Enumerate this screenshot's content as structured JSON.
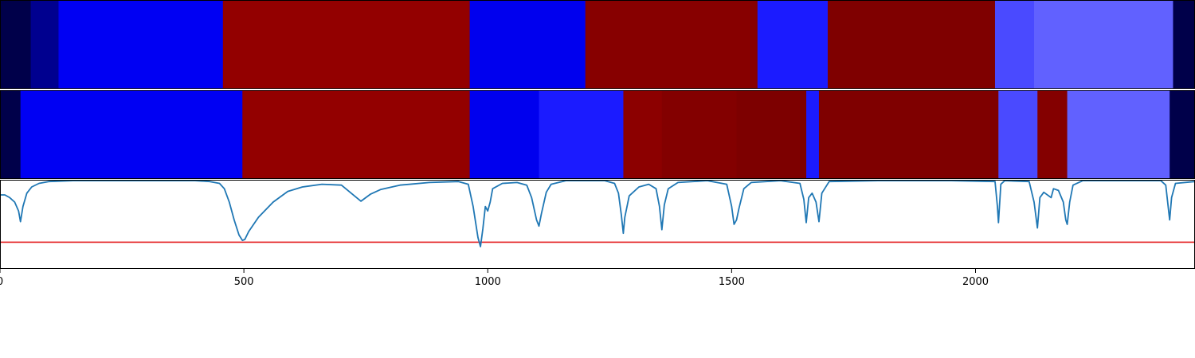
{
  "chart_data": {
    "type": "heatmap",
    "x_range": [
      0,
      2450
    ],
    "x_ticks": [
      0,
      500,
      1000,
      1500,
      2000
    ],
    "x_tick_labels": [
      "0",
      "500",
      "1000",
      "1500",
      "2000"
    ],
    "threshold_color": "#e41a1c",
    "line_color": "#1f77b4",
    "threshold_value": 0.7,
    "rows": [
      {
        "segments": [
          {
            "start": 0,
            "end": 63,
            "color": "#00004a"
          },
          {
            "start": 63,
            "end": 120,
            "color": "#00008f"
          },
          {
            "start": 120,
            "end": 457,
            "color": "#0000f3"
          },
          {
            "start": 457,
            "end": 963,
            "color": "#930000"
          },
          {
            "start": 963,
            "end": 1200,
            "color": "#0000ee"
          },
          {
            "start": 1200,
            "end": 1553,
            "color": "#870000"
          },
          {
            "start": 1553,
            "end": 1697,
            "color": "#1b1bff"
          },
          {
            "start": 1697,
            "end": 2040,
            "color": "#7f0000"
          },
          {
            "start": 2040,
            "end": 2120,
            "color": "#4a4aff"
          },
          {
            "start": 2120,
            "end": 2405,
            "color": "#6161ff"
          },
          {
            "start": 2405,
            "end": 2450,
            "color": "#00004a"
          }
        ]
      },
      {
        "segments": [
          {
            "start": 0,
            "end": 42,
            "color": "#00004a"
          },
          {
            "start": 42,
            "end": 497,
            "color": "#0000f3"
          },
          {
            "start": 497,
            "end": 963,
            "color": "#930000"
          },
          {
            "start": 963,
            "end": 1105,
            "color": "#0000ee"
          },
          {
            "start": 1105,
            "end": 1278,
            "color": "#1b1bff"
          },
          {
            "start": 1278,
            "end": 1357,
            "color": "#8c0000"
          },
          {
            "start": 1357,
            "end": 1510,
            "color": "#830000"
          },
          {
            "start": 1510,
            "end": 1653,
            "color": "#7d0000"
          },
          {
            "start": 1653,
            "end": 1679,
            "color": "#1b1bff"
          },
          {
            "start": 1679,
            "end": 2047,
            "color": "#7f0000"
          },
          {
            "start": 2047,
            "end": 2127,
            "color": "#4a4aff"
          },
          {
            "start": 2127,
            "end": 2188,
            "color": "#840000"
          },
          {
            "start": 2188,
            "end": 2398,
            "color": "#6161ff"
          },
          {
            "start": 2398,
            "end": 2450,
            "color": "#00004a"
          }
        ]
      }
    ],
    "line_ylim": [
      0,
      1
    ],
    "line_points": [
      [
        0,
        0.17
      ],
      [
        10,
        0.17
      ],
      [
        20,
        0.2
      ],
      [
        30,
        0.25
      ],
      [
        38,
        0.35
      ],
      [
        42,
        0.47
      ],
      [
        47,
        0.3
      ],
      [
        55,
        0.15
      ],
      [
        65,
        0.08
      ],
      [
        80,
        0.04
      ],
      [
        100,
        0.02
      ],
      [
        150,
        0.01
      ],
      [
        200,
        0.01
      ],
      [
        300,
        0.01
      ],
      [
        400,
        0.01
      ],
      [
        430,
        0.02
      ],
      [
        450,
        0.04
      ],
      [
        460,
        0.1
      ],
      [
        470,
        0.25
      ],
      [
        480,
        0.45
      ],
      [
        490,
        0.62
      ],
      [
        497,
        0.68
      ],
      [
        502,
        0.67
      ],
      [
        510,
        0.58
      ],
      [
        530,
        0.42
      ],
      [
        560,
        0.25
      ],
      [
        590,
        0.13
      ],
      [
        620,
        0.08
      ],
      [
        660,
        0.05
      ],
      [
        700,
        0.06
      ],
      [
        720,
        0.15
      ],
      [
        740,
        0.24
      ],
      [
        760,
        0.16
      ],
      [
        780,
        0.11
      ],
      [
        820,
        0.06
      ],
      [
        880,
        0.03
      ],
      [
        940,
        0.02
      ],
      [
        960,
        0.05
      ],
      [
        970,
        0.3
      ],
      [
        980,
        0.65
      ],
      [
        985,
        0.75
      ],
      [
        990,
        0.55
      ],
      [
        995,
        0.3
      ],
      [
        1000,
        0.35
      ],
      [
        1005,
        0.25
      ],
      [
        1010,
        0.1
      ],
      [
        1030,
        0.04
      ],
      [
        1060,
        0.03
      ],
      [
        1080,
        0.06
      ],
      [
        1090,
        0.2
      ],
      [
        1100,
        0.45
      ],
      [
        1105,
        0.52
      ],
      [
        1110,
        0.38
      ],
      [
        1120,
        0.14
      ],
      [
        1130,
        0.05
      ],
      [
        1160,
        0.01
      ],
      [
        1240,
        0.01
      ],
      [
        1260,
        0.04
      ],
      [
        1268,
        0.15
      ],
      [
        1274,
        0.4
      ],
      [
        1278,
        0.6
      ],
      [
        1281,
        0.42
      ],
      [
        1290,
        0.18
      ],
      [
        1310,
        0.08
      ],
      [
        1330,
        0.05
      ],
      [
        1345,
        0.1
      ],
      [
        1352,
        0.3
      ],
      [
        1357,
        0.56
      ],
      [
        1362,
        0.28
      ],
      [
        1370,
        0.1
      ],
      [
        1390,
        0.03
      ],
      [
        1450,
        0.01
      ],
      [
        1490,
        0.05
      ],
      [
        1500,
        0.3
      ],
      [
        1505,
        0.5
      ],
      [
        1510,
        0.45
      ],
      [
        1515,
        0.32
      ],
      [
        1525,
        0.1
      ],
      [
        1540,
        0.03
      ],
      [
        1600,
        0.01
      ],
      [
        1640,
        0.04
      ],
      [
        1648,
        0.22
      ],
      [
        1653,
        0.48
      ],
      [
        1658,
        0.2
      ],
      [
        1665,
        0.15
      ],
      [
        1673,
        0.25
      ],
      [
        1679,
        0.47
      ],
      [
        1685,
        0.15
      ],
      [
        1700,
        0.02
      ],
      [
        1800,
        0.01
      ],
      [
        1950,
        0.01
      ],
      [
        2040,
        0.02
      ],
      [
        2045,
        0.3
      ],
      [
        2047,
        0.48
      ],
      [
        2052,
        0.05
      ],
      [
        2060,
        0.01
      ],
      [
        2110,
        0.02
      ],
      [
        2120,
        0.25
      ],
      [
        2127,
        0.54
      ],
      [
        2132,
        0.2
      ],
      [
        2140,
        0.14
      ],
      [
        2155,
        0.2
      ],
      [
        2160,
        0.1
      ],
      [
        2170,
        0.12
      ],
      [
        2180,
        0.25
      ],
      [
        2185,
        0.45
      ],
      [
        2188,
        0.5
      ],
      [
        2193,
        0.25
      ],
      [
        2200,
        0.06
      ],
      [
        2220,
        0.01
      ],
      [
        2380,
        0.01
      ],
      [
        2390,
        0.06
      ],
      [
        2395,
        0.3
      ],
      [
        2398,
        0.45
      ],
      [
        2402,
        0.2
      ],
      [
        2410,
        0.04
      ],
      [
        2450,
        0.02
      ]
    ]
  }
}
